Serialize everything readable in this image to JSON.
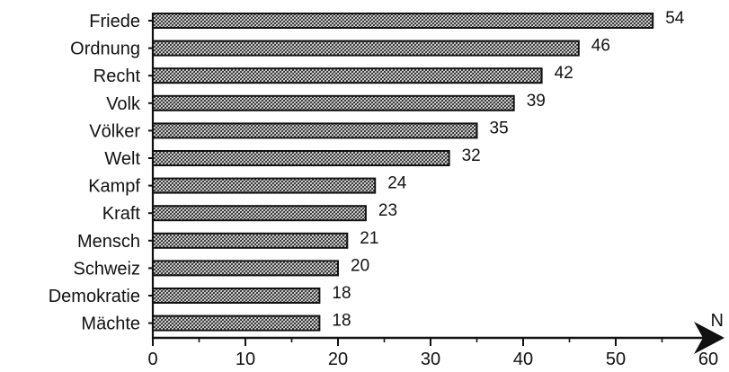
{
  "chart_data": {
    "type": "bar",
    "orientation": "horizontal",
    "categories": [
      "Friede",
      "Ordnung",
      "Recht",
      "Volk",
      "Völker",
      "Welt",
      "Kampf",
      "Kraft",
      "Mensch",
      "Schweiz",
      "Demokratie",
      "Mächte"
    ],
    "values": [
      54,
      46,
      42,
      39,
      35,
      32,
      24,
      23,
      21,
      20,
      18,
      18
    ],
    "value_labels": [
      "54",
      "46",
      "42",
      "39",
      "35",
      "32",
      "24",
      "23",
      "21",
      "20",
      "18",
      "18"
    ],
    "xticks": [
      "0",
      "10",
      "20",
      "30",
      "40",
      "50",
      "60"
    ],
    "xlabel": "N",
    "xlim": [
      0,
      60
    ],
    "grid": false,
    "bar_fill": "crosshatch",
    "colors": {
      "bar_edge": "#111111",
      "bar_hatch": "#2a2a2a",
      "bar_bg": "#ffffff",
      "axis": "#111111"
    }
  }
}
